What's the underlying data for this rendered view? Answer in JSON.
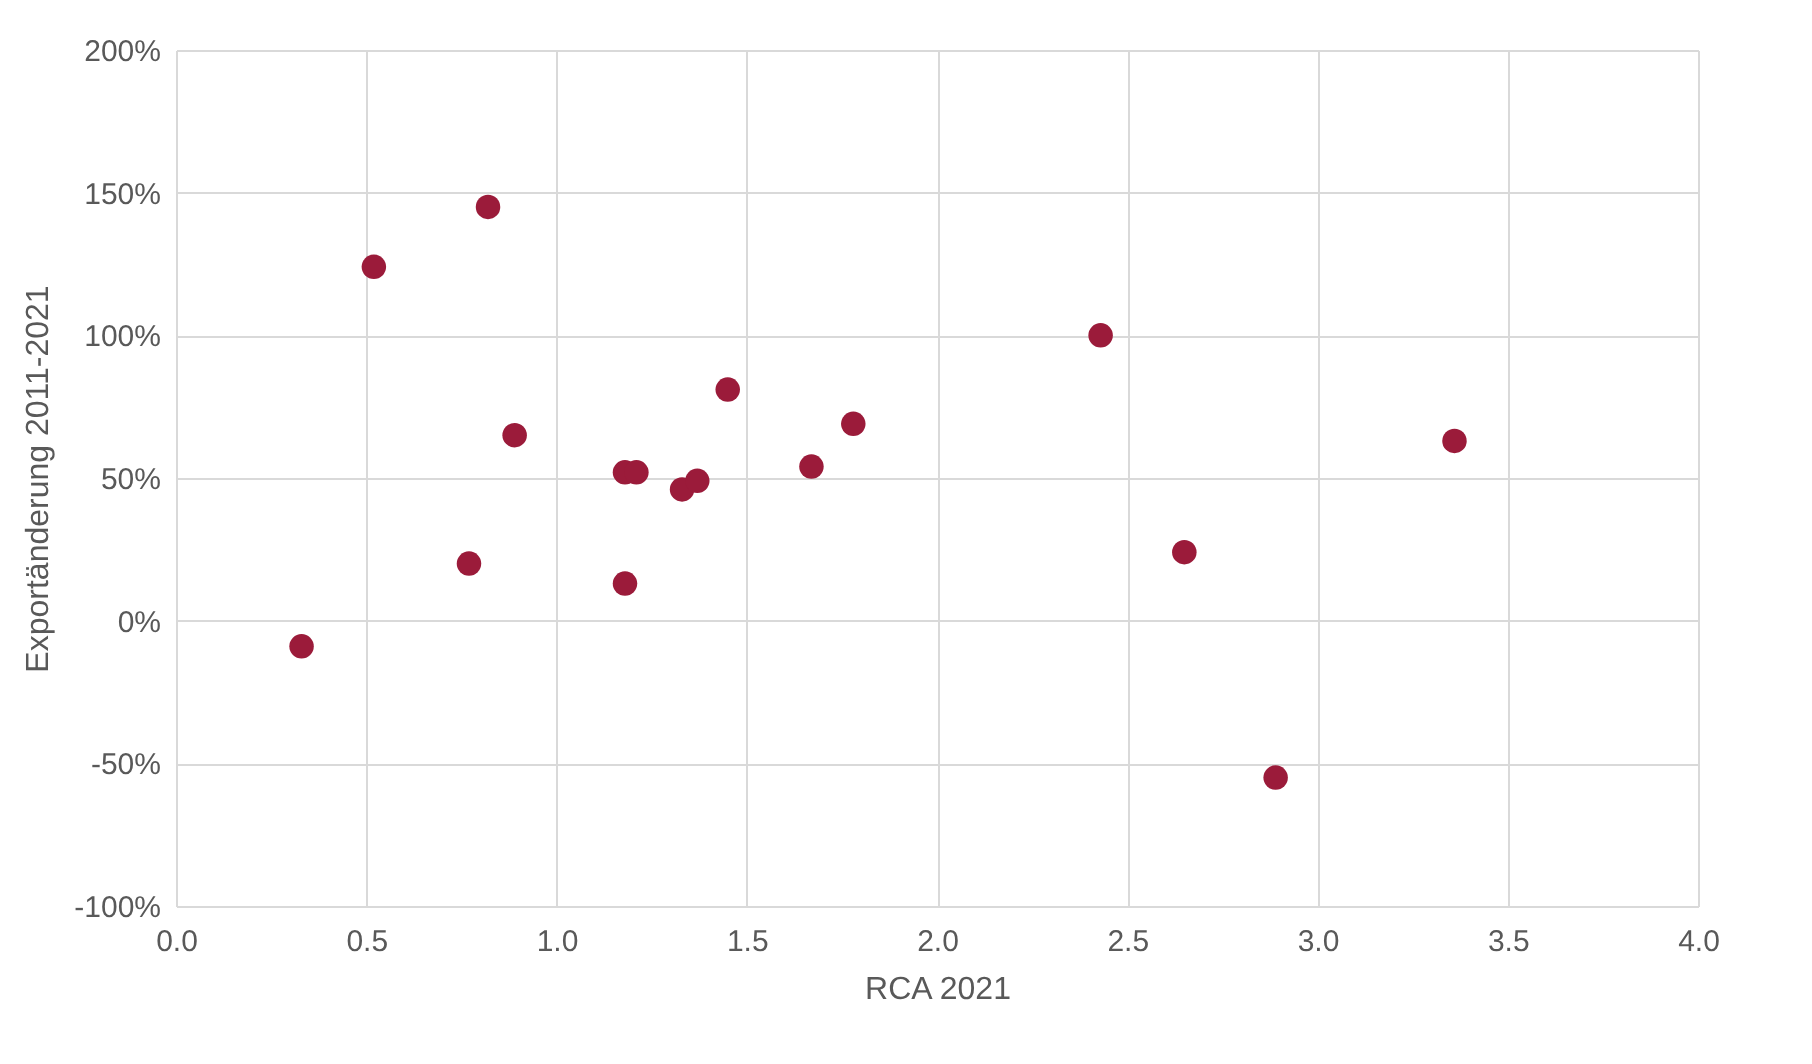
{
  "chart_data": {
    "type": "scatter",
    "xlabel": "RCA 2021",
    "ylabel": "Exportänderung 2011-2021",
    "x": [
      0.33,
      0.52,
      0.82,
      0.77,
      0.89,
      1.18,
      1.21,
      1.18,
      1.33,
      1.37,
      1.45,
      1.67,
      1.78,
      2.43,
      2.65,
      2.89,
      3.36
    ],
    "series": [
      {
        "color": "#9b1b3a",
        "values": [
          -9,
          124,
          145,
          20,
          65,
          52,
          52,
          13,
          46,
          49,
          81,
          54,
          69,
          100,
          24,
          -55,
          63
        ]
      }
    ],
    "xlim": [
      0,
      4
    ],
    "ylim": [
      -100,
      200
    ],
    "xticks": [
      {
        "value": 0,
        "label": "0.0"
      },
      {
        "value": 0.5,
        "label": "0.5"
      },
      {
        "value": 1,
        "label": "1.0"
      },
      {
        "value": 1.5,
        "label": "1.5"
      },
      {
        "value": 2,
        "label": "2.0"
      },
      {
        "value": 2.5,
        "label": "2.5"
      },
      {
        "value": 3,
        "label": "3.0"
      },
      {
        "value": 3.5,
        "label": "3.5"
      },
      {
        "value": 4,
        "label": "4.0"
      }
    ],
    "yticks": [
      {
        "value": -100,
        "label": "-100%"
      },
      {
        "value": -50,
        "label": "-50%"
      },
      {
        "value": 0,
        "label": "0%"
      },
      {
        "value": 50,
        "label": "50%"
      },
      {
        "value": 100,
        "label": "100%"
      },
      {
        "value": 150,
        "label": "150%"
      },
      {
        "value": 200,
        "label": "200%"
      }
    ],
    "grid": true,
    "marker": "circle",
    "legend": false
  }
}
